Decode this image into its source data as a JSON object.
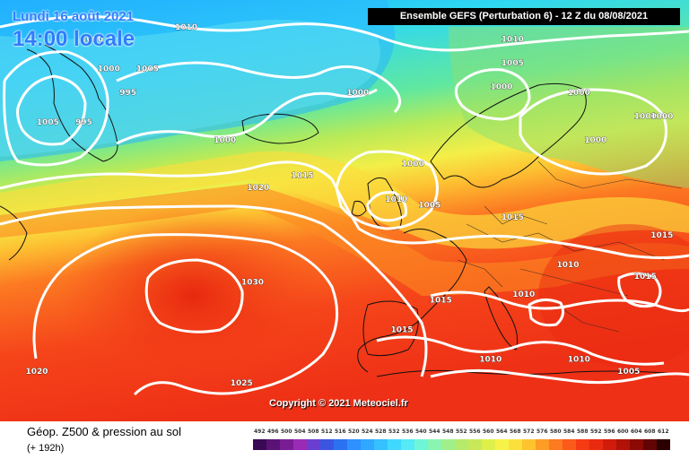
{
  "header": {
    "date": "Lundi 16 août 2021",
    "time": "14:00 locale",
    "run_info": "Ensemble GEFS  (Perturbation 6)  - 12 Z du 08/08/2021"
  },
  "footer": {
    "title": "Géop. Z500 & pression au sol",
    "lead": "(+ 192h)",
    "copyright": "Copyright © 2021 Meteociel.fr"
  },
  "legend_scale": {
    "values": [
      "492",
      "496",
      "500",
      "504",
      "508",
      "512",
      "516",
      "520",
      "524",
      "528",
      "532",
      "536",
      "540",
      "544",
      "548",
      "552",
      "556",
      "560",
      "564",
      "568",
      "572",
      "576",
      "580",
      "584",
      "588",
      "592",
      "596",
      "600",
      "604",
      "608",
      "612"
    ],
    "colors": [
      "#3a0a55",
      "#5a1375",
      "#7a1d95",
      "#9a2bb5",
      "#6a3fd0",
      "#3b55e0",
      "#2a72f0",
      "#2f90ff",
      "#30a8ff",
      "#35c0ff",
      "#40d8ff",
      "#55eaf5",
      "#6ff5d8",
      "#8af5b0",
      "#9ff08c",
      "#b5ea6b",
      "#c8e85a",
      "#e0f04a",
      "#f6f24a",
      "#fbe03c",
      "#fdc430",
      "#fd9d26",
      "#fc7a20",
      "#fa5a1a",
      "#f53a14",
      "#e82a10",
      "#d01c0c",
      "#b01208",
      "#8c0a05",
      "#620403",
      "#2a0000"
    ]
  },
  "isobar_labels": [
    {
      "text": "1000",
      "lon": -62,
      "lat": 71
    },
    {
      "text": "1010",
      "lon": -45,
      "lat": 73
    },
    {
      "text": "1000",
      "lon": -59,
      "lat": 66
    },
    {
      "text": "1005",
      "lon": -52,
      "lat": 66
    },
    {
      "text": "995",
      "lon": -55,
      "lat": 62
    },
    {
      "text": "995",
      "lon": -63,
      "lat": 57
    },
    {
      "text": "1005",
      "lon": -70,
      "lat": 57
    },
    {
      "text": "1000",
      "lon": -38,
      "lat": 54
    },
    {
      "text": "1000",
      "lon": -14,
      "lat": 62
    },
    {
      "text": "1010",
      "lon": 14,
      "lat": 71
    },
    {
      "text": "1005",
      "lon": 14,
      "lat": 67
    },
    {
      "text": "1000",
      "lon": 12,
      "lat": 63
    },
    {
      "text": "1000",
      "lon": 26,
      "lat": 62
    },
    {
      "text": "1000",
      "lon": 38,
      "lat": 58
    },
    {
      "text": "1000",
      "lon": 41,
      "lat": 58
    },
    {
      "text": "1000",
      "lon": 29,
      "lat": 54
    },
    {
      "text": "1000",
      "lon": -4,
      "lat": 50
    },
    {
      "text": "1015",
      "lon": -24,
      "lat": 48
    },
    {
      "text": "1020",
      "lon": -32,
      "lat": 46
    },
    {
      "text": "1010",
      "lon": -7,
      "lat": 44
    },
    {
      "text": "1005",
      "lon": -1,
      "lat": 43
    },
    {
      "text": "1015",
      "lon": 14,
      "lat": 41
    },
    {
      "text": "1015",
      "lon": 41,
      "lat": 38
    },
    {
      "text": "1030",
      "lon": -33,
      "lat": 30
    },
    {
      "text": "1010",
      "lon": 24,
      "lat": 33
    },
    {
      "text": "1015",
      "lon": 38,
      "lat": 31
    },
    {
      "text": "1015",
      "lon": 1,
      "lat": 27
    },
    {
      "text": "1010",
      "lon": 16,
      "lat": 28
    },
    {
      "text": "1015",
      "lon": -6,
      "lat": 22
    },
    {
      "text": "1010",
      "lon": 10,
      "lat": 17
    },
    {
      "text": "1010",
      "lon": 26,
      "lat": 17
    },
    {
      "text": "1005",
      "lon": 35,
      "lat": 15
    },
    {
      "text": "1020",
      "lon": -72,
      "lat": 15
    },
    {
      "text": "1025",
      "lon": -35,
      "lat": 13
    }
  ],
  "colors": {
    "isobar": "#ffffff",
    "coastline": "#111111"
  }
}
